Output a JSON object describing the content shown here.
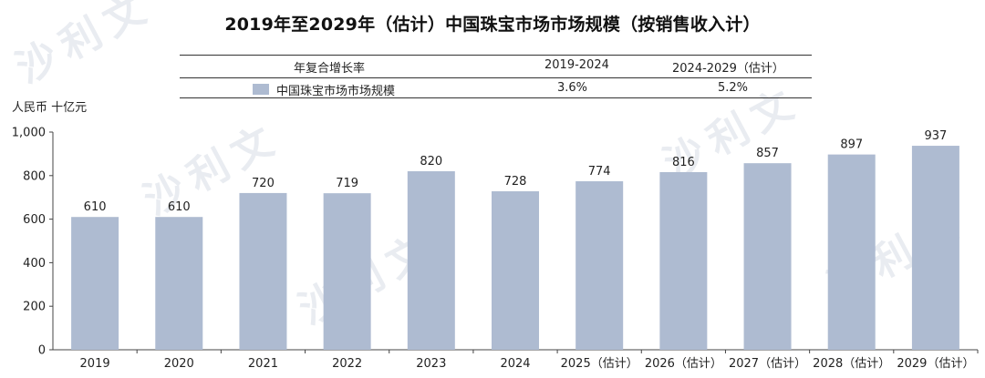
{
  "title": "2019年至2029年（估计）中国珠宝市场市场规模（按销售收入计）",
  "cagr_table": {
    "header_label": "年复合增长率",
    "periods": [
      "2019-2024",
      "2024-2029（估计）"
    ],
    "series_label": "中国珠宝市场市场规模",
    "values": [
      "3.6%",
      "5.2%"
    ]
  },
  "watermark_text": "沙利文",
  "chart_data": {
    "type": "bar",
    "title": "2019年至2029年（估计）中国珠宝市场市场规模（按销售收入计）",
    "ylabel": "人民币 十亿元",
    "categories": [
      "2019",
      "2020",
      "2021",
      "2022",
      "2023",
      "2024",
      "2025（估计）",
      "2026（估计）",
      "2027（估计）",
      "2028（估计）",
      "2029（估计）"
    ],
    "series": [
      {
        "name": "中国珠宝市场市场规模",
        "values": [
          610,
          610,
          720,
          719,
          820,
          728,
          774,
          816,
          857,
          897,
          937
        ]
      }
    ],
    "data_labels": [
      "610",
      "610",
      "720",
      "719",
      "820",
      "728",
      "774",
      "816",
      "857",
      "897",
      "937"
    ],
    "yticks": [
      "0",
      "200",
      "400",
      "600",
      "800",
      "1,000"
    ],
    "ylim": [
      0,
      1000
    ],
    "grid": false,
    "color": "#aebbd1"
  }
}
